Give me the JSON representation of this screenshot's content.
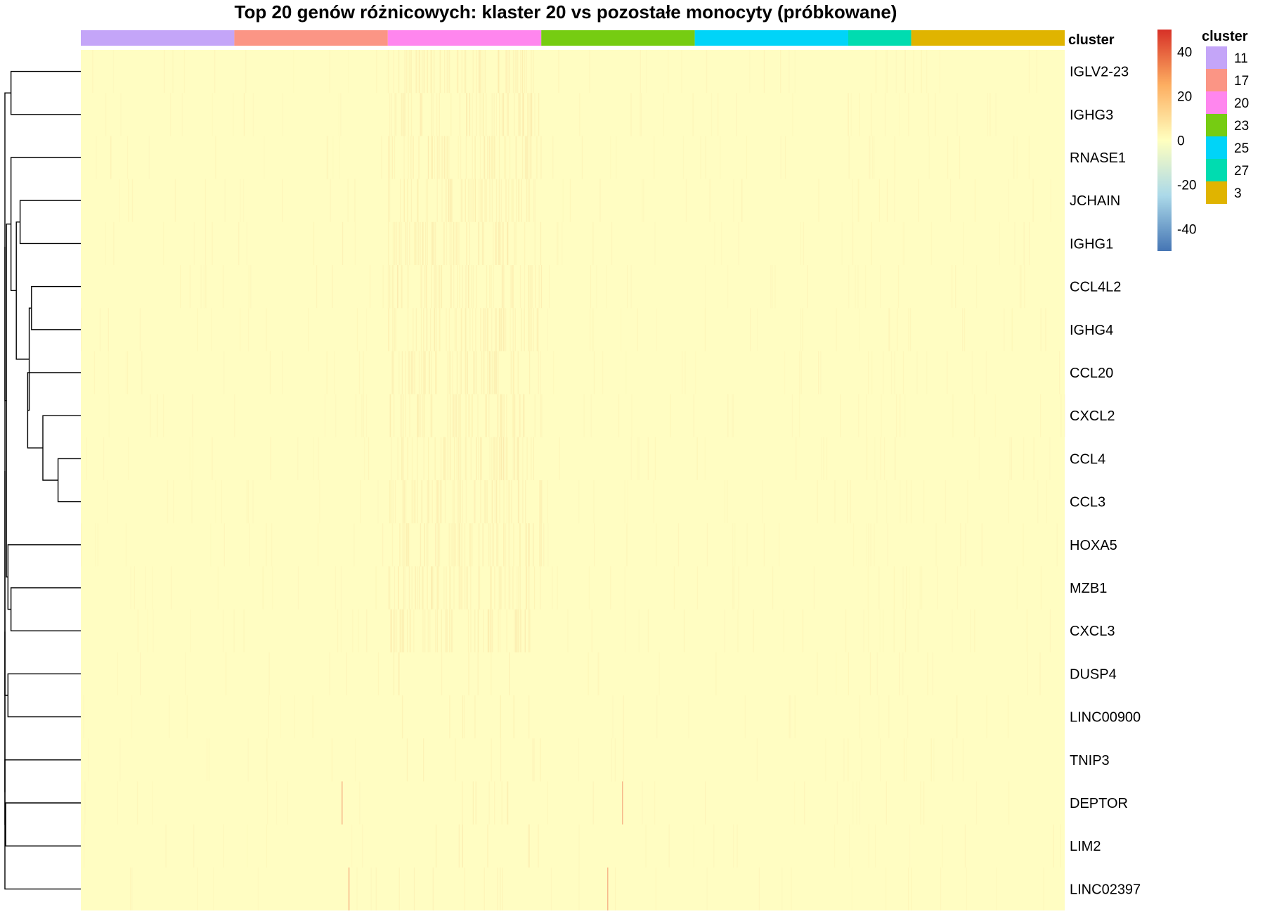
{
  "chart_data": {
    "type": "heatmap",
    "title": "Top 20 genów różnicowych: klaster 20 vs pozostałe monocyty (próbkowane)",
    "annotation_label": "cluster",
    "genes": [
      "IGLV2-23",
      "IGHG3",
      "RNASE1",
      "JCHAIN",
      "IGHG1",
      "CCL4L2",
      "IGHG4",
      "CCL20",
      "CXCL2",
      "CCL4",
      "CCL3",
      "HOXA5",
      "MZB1",
      "CXCL3",
      "DUSP4",
      "LINC00900",
      "TNIP3",
      "DEPTOR",
      "LIM2",
      "LINC02397"
    ],
    "column_groups": [
      {
        "cluster": "11",
        "color": "#C4A5F8",
        "fraction": 0.156
      },
      {
        "cluster": "17",
        "color": "#FB9585",
        "fraction": 0.156
      },
      {
        "cluster": "20",
        "color": "#FF86EE",
        "fraction": 0.156
      },
      {
        "cluster": "23",
        "color": "#76CC12",
        "fraction": 0.156
      },
      {
        "cluster": "25",
        "color": "#00D4F8",
        "fraction": 0.156
      },
      {
        "cluster": "27",
        "color": "#00DCB0",
        "fraction": 0.064
      },
      {
        "cluster": "3",
        "color": "#E0B400",
        "fraction": 0.156
      }
    ],
    "color_scale": {
      "ticks": [
        40,
        20,
        0,
        -20,
        -40
      ],
      "range": [
        -50,
        50
      ],
      "low_color": "#4575B4",
      "mid_color": "#FFFFBF",
      "high_color": "#D73027"
    },
    "legend": {
      "title": "cluster",
      "entries": [
        {
          "label": "11",
          "color": "#C4A5F8"
        },
        {
          "label": "17",
          "color": "#FB9585"
        },
        {
          "label": "20",
          "color": "#FF86EE"
        },
        {
          "label": "23",
          "color": "#76CC12"
        },
        {
          "label": "25",
          "color": "#00D4F8"
        },
        {
          "label": "27",
          "color": "#00DCB0"
        },
        {
          "label": "3",
          "color": "#E0B400"
        }
      ]
    },
    "base_cell_color": "#FFFDC2",
    "dendrogram": {
      "leaf_order": [
        0,
        1,
        2,
        3,
        4,
        5,
        6,
        7,
        8,
        9,
        10,
        11,
        12,
        13,
        14,
        15,
        16,
        17,
        18,
        19
      ],
      "merges": [
        [
          9,
          10,
          0.3
        ],
        [
          8,
          "m0",
          0.5
        ],
        [
          7,
          "m1",
          0.7
        ],
        [
          5,
          6,
          0.65
        ],
        [
          3,
          4,
          0.8
        ],
        [
          "m3",
          "m2",
          0.68
        ],
        [
          "m4",
          "m5",
          0.85
        ],
        [
          2,
          "m6",
          0.92
        ],
        [
          0,
          1,
          0.92
        ],
        [
          12,
          13,
          0.92
        ],
        [
          11,
          "m9",
          0.96
        ],
        [
          14,
          15,
          0.96
        ],
        [
          "m7",
          "m10",
          0.98
        ],
        [
          "m8",
          "m12",
          1.0
        ],
        [
          17,
          18,
          0.99
        ],
        [
          16,
          "m14",
          1.0
        ],
        [
          "m13",
          "m11",
          1.0
        ],
        [
          "m16",
          "m15",
          1.0
        ],
        [
          19,
          "m17",
          1.0
        ]
      ]
    }
  }
}
